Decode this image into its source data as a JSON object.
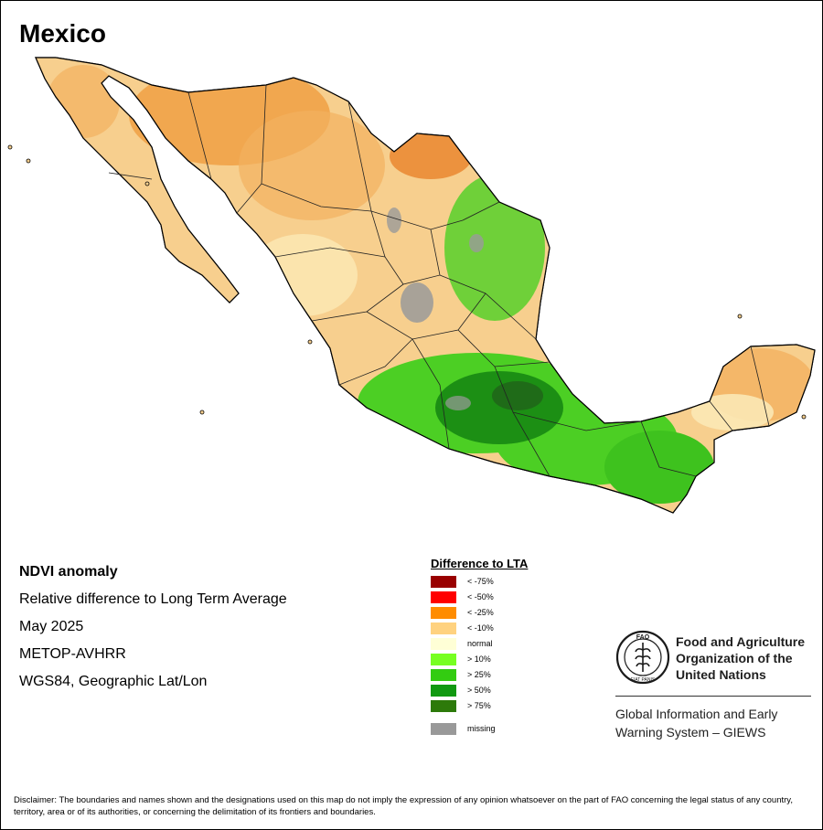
{
  "title": "Mexico",
  "info": {
    "product": "NDVI anomaly",
    "description": "Relative difference to Long Term Average",
    "period": "May 2025",
    "sensor": "METOP-AVHRR",
    "projection": "WGS84, Geographic Lat/Lon"
  },
  "legend": {
    "title": "Difference to LTA",
    "items": [
      {
        "label": "< -75%",
        "color": "#990000"
      },
      {
        "label": "< -50%",
        "color": "#ff0000"
      },
      {
        "label": "< -25%",
        "color": "#ff8c00"
      },
      {
        "label": "< -10%",
        "color": "#ffd27f"
      },
      {
        "label": "normal",
        "color": "#ffffd6"
      },
      {
        "label": "> 10%",
        "color": "#77ff22"
      },
      {
        "label": "> 25%",
        "color": "#33cc11"
      },
      {
        "label": "> 50%",
        "color": "#119911"
      },
      {
        "label": "> 75%",
        "color": "#2d7a0a"
      }
    ],
    "missing": {
      "label": "missing",
      "color": "#999999"
    }
  },
  "map_colors": {
    "land_dry": "#f7cf8e",
    "land_normal": "#fbe8b5",
    "wet": "#4ccf24",
    "very_wet": "#1c8f14",
    "deep_wet": "#1f6b18",
    "orange": "#ef9a3a",
    "missing": "#9a9a9a",
    "border": "#000000"
  },
  "fao": {
    "logo_letters": "FAO",
    "logo_motto": "FIAT PANIS",
    "name_line1": "Food and Agriculture",
    "name_line2": "Organization of the",
    "name_line3": "United Nations",
    "giews_line1": "Global Information and Early",
    "giews_line2": "Warning System – GIEWS"
  },
  "disclaimer": "Disclaimer: The boundaries and names shown and the designations used on this map do not imply the expression of any opinion whatsoever on the part of FAO concerning the legal status of any country, territory, area or of its authorities, or concerning the delimitation of its frontiers and boundaries."
}
